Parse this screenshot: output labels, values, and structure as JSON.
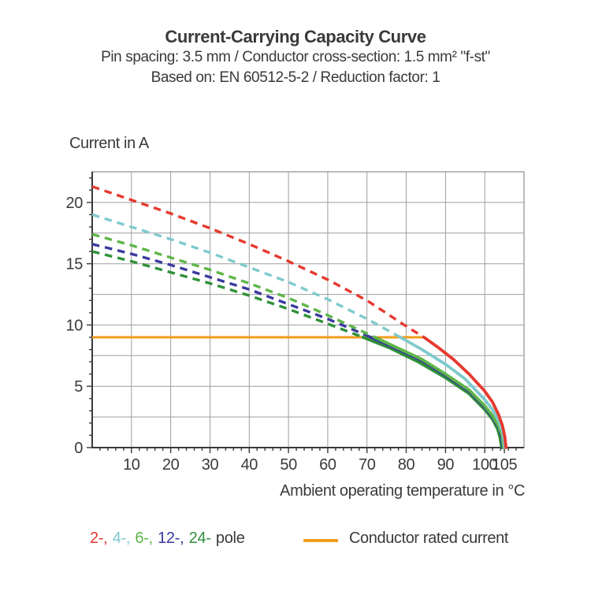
{
  "header": {
    "title": "Current-Carrying Capacity Curve",
    "subtitle1": "Pin spacing: 3.5 mm / Conductor cross-section: 1.5 mm² \"f-st\"",
    "subtitle2": "Based on: EN 60512-5-2 / Reduction factor: 1"
  },
  "axes": {
    "y_title": "Current in A",
    "x_title": "Ambient operating temperature in °C"
  },
  "legend": {
    "pole_items": [
      {
        "label": "2-",
        "color": "#e6392e"
      },
      {
        "label": "4-",
        "color": "#7fcacd"
      },
      {
        "label": "6-",
        "color": "#5eb648"
      },
      {
        "label": "12-",
        "color": "#3a3a9e"
      },
      {
        "label": "24-",
        "color": "#2f9139"
      }
    ],
    "pole_suffix": "pole",
    "pole_suffix_color": "#3a3a3a",
    "rated_label": "Conductor rated current",
    "rated_color": "#f59c1e"
  },
  "chart_data": {
    "type": "line",
    "title": "Current-Carrying Capacity Curve",
    "xlabel": "Ambient operating temperature in °C",
    "ylabel": "Current in A",
    "xlim": [
      0,
      110
    ],
    "ylim": [
      0,
      22.5
    ],
    "grid": {
      "x_step": 10,
      "y_step": 2.5,
      "x_minor_tick_step": 2,
      "y_minor_tick_step": 1
    },
    "x_ticks": [
      10,
      20,
      30,
      40,
      50,
      60,
      70,
      80,
      90,
      100,
      105
    ],
    "y_ticks": [
      0,
      5,
      10,
      15,
      20
    ],
    "legend_position": "bottom",
    "rated_current_line": {
      "label": "Conductor rated current",
      "value": 9,
      "from_temp": 0,
      "to_temp": 84.5,
      "color": "#f59c1e"
    },
    "series": [
      {
        "name": "24-pole",
        "color": "#2f9139",
        "start_current": 16.0,
        "rated_crossing_temp": 69,
        "max_temp": 104.3,
        "dashed_points": [
          [
            0,
            16.0
          ],
          [
            10,
            15.2
          ],
          [
            20,
            14.3
          ],
          [
            30,
            13.4
          ],
          [
            40,
            12.4
          ],
          [
            50,
            11.3
          ],
          [
            60,
            10.1
          ],
          [
            69,
            9.0
          ]
        ],
        "solid_points": [
          [
            69,
            9.0
          ],
          [
            76,
            8.1
          ],
          [
            83,
            7.0
          ],
          [
            90,
            5.7
          ],
          [
            96,
            4.4
          ],
          [
            100,
            3.1
          ],
          [
            102,
            2.3
          ],
          [
            103.3,
            1.5
          ],
          [
            103.9,
            0.8
          ],
          [
            104.3,
            0
          ]
        ]
      },
      {
        "name": "12-pole",
        "color": "#3a3a9e",
        "start_current": 16.6,
        "rated_crossing_temp": 71,
        "max_temp": 104.6,
        "dashed_points": [
          [
            0,
            16.6
          ],
          [
            10,
            15.8
          ],
          [
            20,
            14.9
          ],
          [
            30,
            13.9
          ],
          [
            40,
            12.9
          ],
          [
            50,
            11.7
          ],
          [
            60,
            10.5
          ],
          [
            71,
            9.0
          ]
        ],
        "solid_points": [
          [
            71,
            9.0
          ],
          [
            78,
            8.0
          ],
          [
            84,
            7.1
          ],
          [
            90,
            5.9
          ],
          [
            96,
            4.6
          ],
          [
            100,
            3.3
          ],
          [
            102,
            2.5
          ],
          [
            103.5,
            1.7
          ],
          [
            104.2,
            1.0
          ],
          [
            104.6,
            0
          ]
        ]
      },
      {
        "name": "6-pole",
        "color": "#5eb648",
        "start_current": 17.4,
        "rated_crossing_temp": 72,
        "max_temp": 104.8,
        "dashed_points": [
          [
            0,
            17.4
          ],
          [
            10,
            16.5
          ],
          [
            20,
            15.5
          ],
          [
            30,
            14.5
          ],
          [
            40,
            13.4
          ],
          [
            50,
            12.2
          ],
          [
            60,
            10.8
          ],
          [
            72,
            9.0
          ]
        ],
        "solid_points": [
          [
            72,
            9.0
          ],
          [
            78,
            8.1
          ],
          [
            84,
            7.2
          ],
          [
            90,
            6.0
          ],
          [
            96,
            4.7
          ],
          [
            100,
            3.4
          ],
          [
            102,
            2.6
          ],
          [
            103.5,
            1.8
          ],
          [
            104.4,
            1.0
          ],
          [
            104.8,
            0
          ]
        ]
      },
      {
        "name": "4-pole",
        "color": "#7fcacd",
        "start_current": 19.0,
        "rated_crossing_temp": 78.5,
        "max_temp": 105.1,
        "dashed_points": [
          [
            0,
            19.0
          ],
          [
            10,
            18.0
          ],
          [
            20,
            17.0
          ],
          [
            30,
            15.9
          ],
          [
            40,
            14.7
          ],
          [
            50,
            13.5
          ],
          [
            60,
            12.1
          ],
          [
            70,
            10.5
          ],
          [
            78.5,
            9.0
          ]
        ],
        "solid_points": [
          [
            78.5,
            9.0
          ],
          [
            84,
            8.0
          ],
          [
            90,
            6.8
          ],
          [
            95,
            5.6
          ],
          [
            100,
            3.9
          ],
          [
            102,
            3.1
          ],
          [
            103.5,
            2.2
          ],
          [
            104.6,
            1.2
          ],
          [
            105.1,
            0
          ]
        ]
      },
      {
        "name": "2-pole",
        "color": "#e6392e",
        "start_current": 21.3,
        "rated_crossing_temp": 84.5,
        "max_temp": 105.4,
        "dashed_points": [
          [
            0,
            21.3
          ],
          [
            10,
            20.2
          ],
          [
            20,
            19.1
          ],
          [
            30,
            17.9
          ],
          [
            40,
            16.6
          ],
          [
            50,
            15.2
          ],
          [
            60,
            13.7
          ],
          [
            70,
            12.0
          ],
          [
            80,
            9.9
          ],
          [
            84.5,
            9.0
          ]
        ],
        "solid_points": [
          [
            84.5,
            9.0
          ],
          [
            88,
            8.2
          ],
          [
            92,
            7.2
          ],
          [
            96,
            6.0
          ],
          [
            100,
            4.6
          ],
          [
            102,
            3.7
          ],
          [
            103.5,
            2.7
          ],
          [
            104.5,
            1.8
          ],
          [
            105.1,
            0.9
          ],
          [
            105.4,
            0
          ]
        ]
      }
    ]
  }
}
